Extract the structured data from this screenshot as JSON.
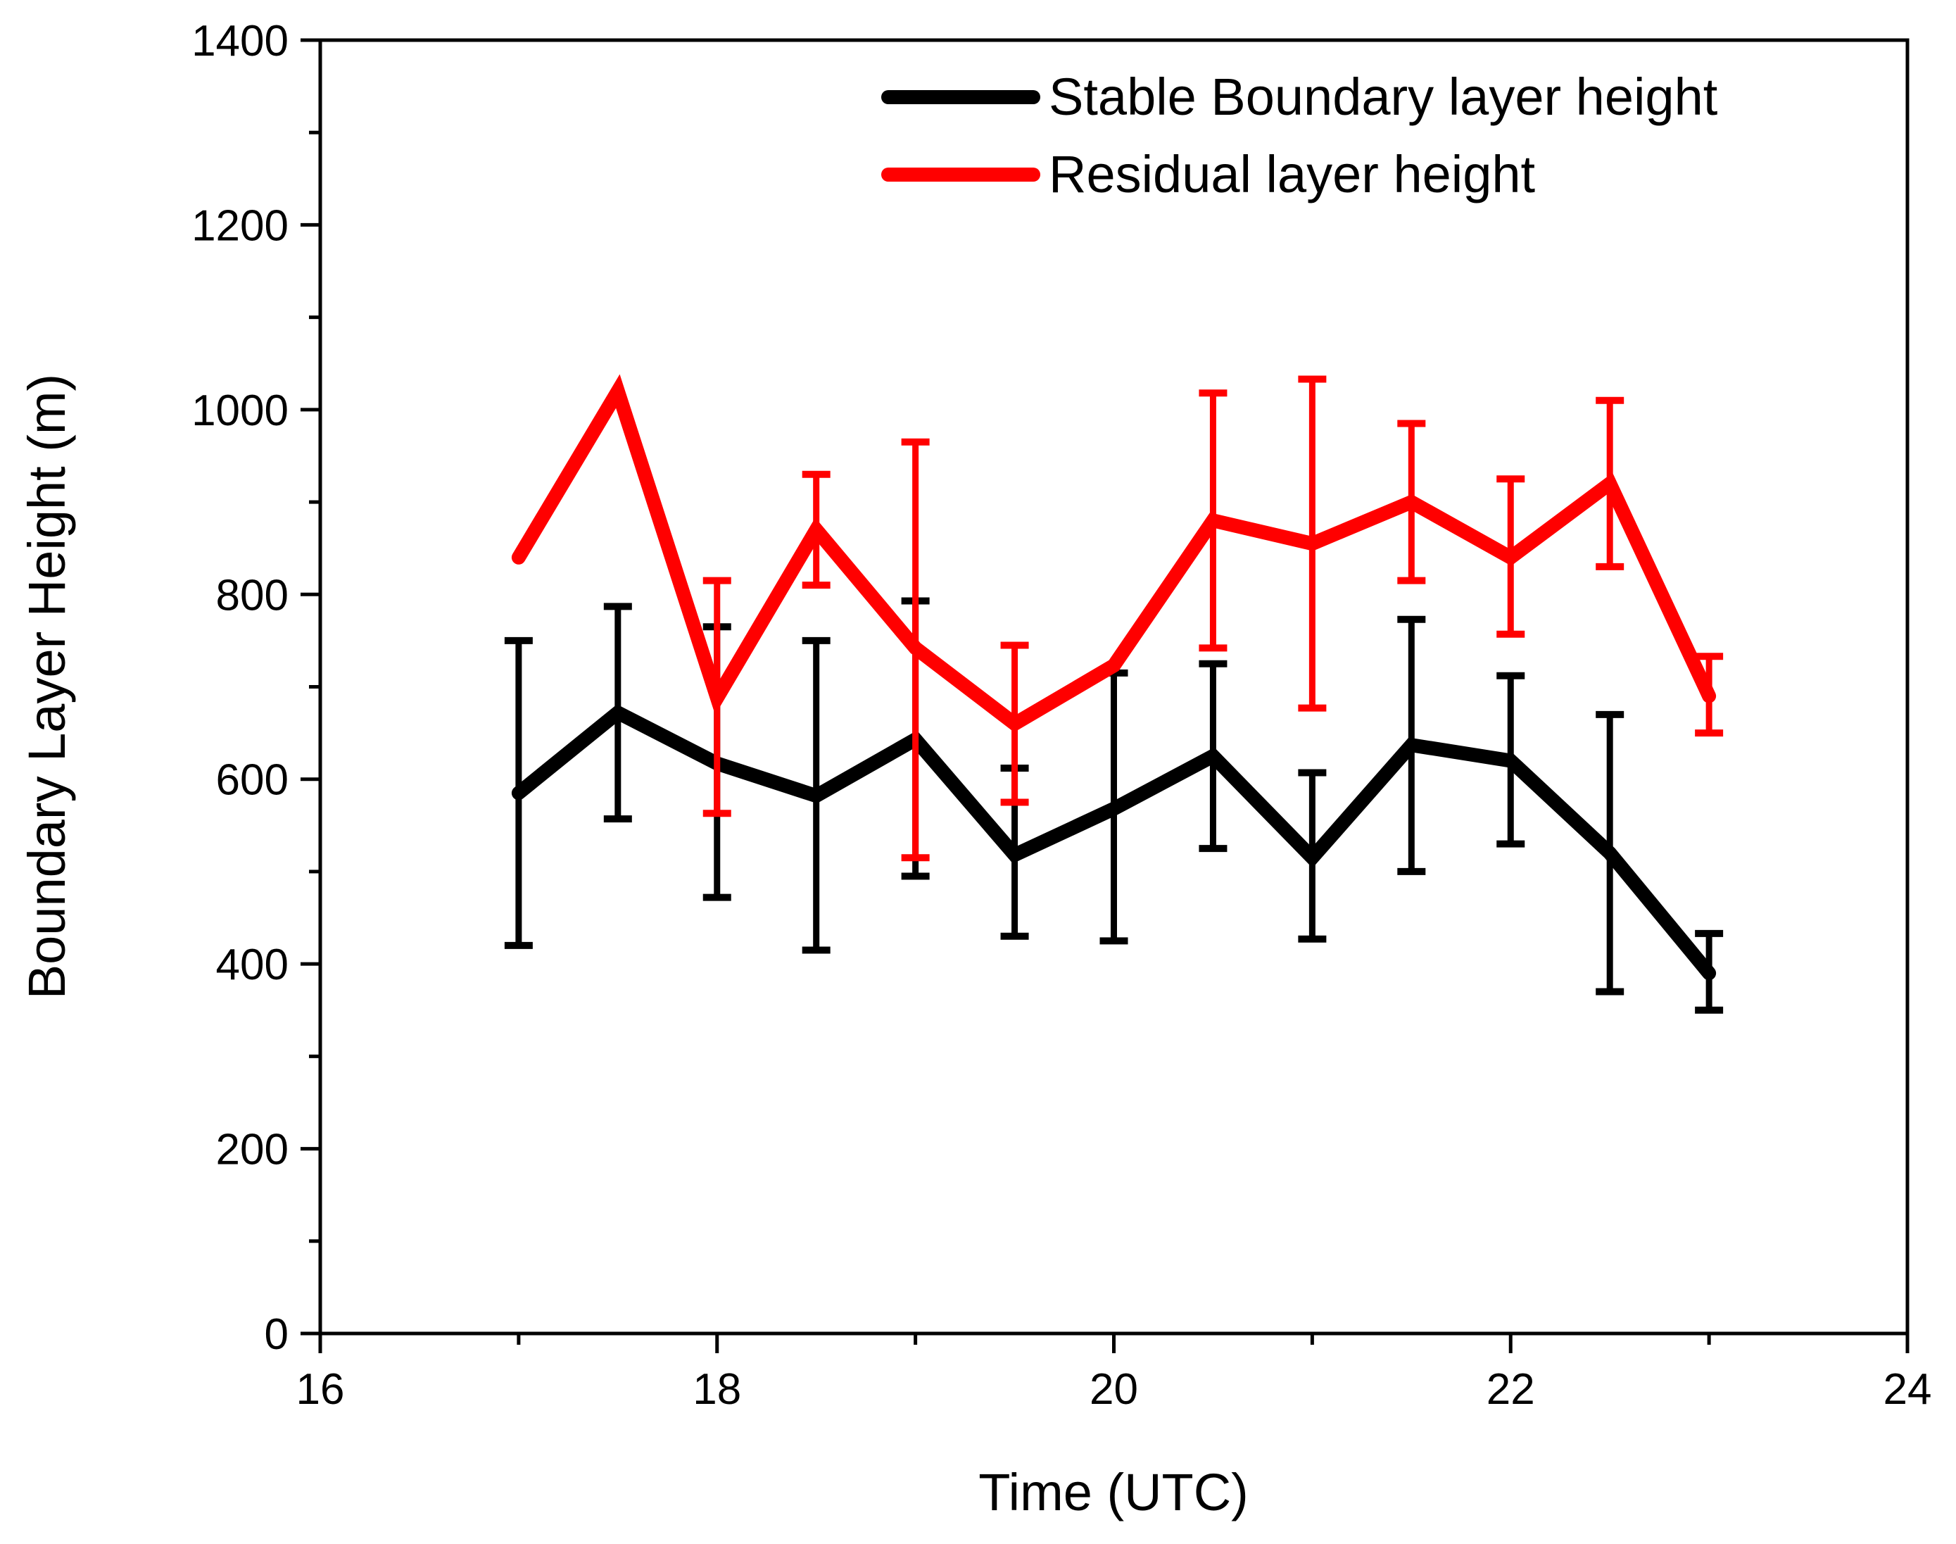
{
  "chart_data": {
    "type": "line",
    "title": "",
    "xlabel": "Time (UTC)",
    "ylabel": "Boundary Layer Height (m)",
    "xlim": [
      16,
      24
    ],
    "ylim": [
      0,
      1400
    ],
    "x_ticks": [
      16,
      18,
      20,
      22,
      24
    ],
    "y_ticks": [
      0,
      200,
      400,
      600,
      800,
      1000,
      1200,
      1400
    ],
    "x_minor_step": 1,
    "y_minor_step": 100,
    "grid": false,
    "legend_position": "top-right",
    "series": [
      {
        "name": "Stable Boundary layer height",
        "color": "#000000",
        "x": [
          17,
          17.5,
          18,
          18.5,
          19,
          19.5,
          20,
          20.5,
          21,
          21.5,
          22,
          22.5,
          23
        ],
        "values": [
          585,
          672,
          617,
          582,
          643,
          518,
          568,
          625,
          515,
          637,
          620,
          520,
          390
        ],
        "error_low": [
          420,
          557,
          472,
          415,
          495,
          430,
          425,
          525,
          427,
          500,
          530,
          370,
          350
        ],
        "error_high": [
          750,
          787,
          765,
          750,
          793,
          612,
          715,
          725,
          607,
          773,
          712,
          670,
          433
        ]
      },
      {
        "name": "Residual layer height",
        "color": "#ff0000",
        "x": [
          17,
          17.5,
          18,
          18.5,
          19,
          19.5,
          20,
          20.5,
          21,
          21.5,
          22,
          22.5,
          23
        ],
        "values": [
          840,
          1020,
          688,
          870,
          742,
          660,
          723,
          880,
          855,
          900,
          840,
          920,
          690
        ],
        "error_low": [
          null,
          null,
          563,
          810,
          515,
          575,
          null,
          742,
          677,
          815,
          757,
          830,
          650
        ],
        "error_high": [
          null,
          null,
          815,
          930,
          965,
          745,
          null,
          1018,
          1033,
          985,
          925,
          1010,
          733
        ]
      }
    ]
  }
}
